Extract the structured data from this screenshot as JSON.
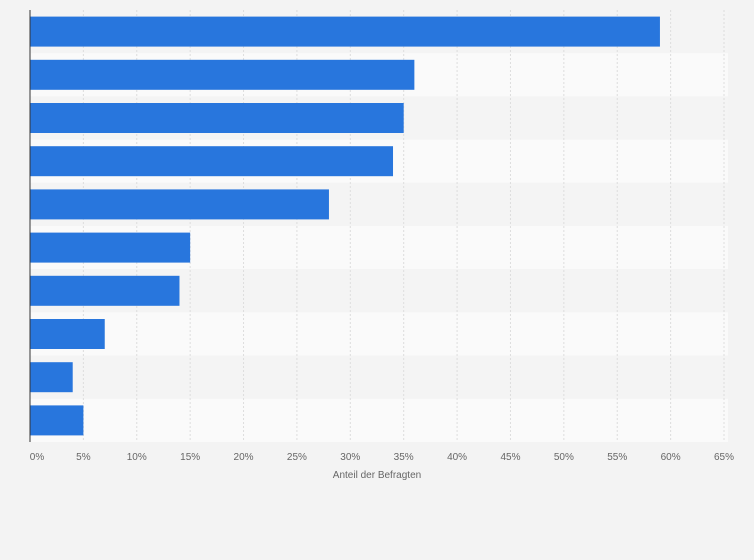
{
  "chart_data": {
    "type": "bar",
    "orientation": "horizontal",
    "categories": [
      "",
      "",
      "",
      "",
      "",
      "",
      "",
      "",
      "",
      ""
    ],
    "values": [
      59,
      36,
      35,
      34,
      28,
      15,
      14,
      7,
      4,
      5
    ],
    "xlabel": "Anteil der Befragten",
    "ylabel": "",
    "xlim": [
      0,
      65
    ],
    "ticks": [
      0,
      5,
      10,
      15,
      20,
      25,
      30,
      35,
      40,
      45,
      50,
      55,
      60,
      65
    ],
    "tick_labels": [
      "0%",
      "5%",
      "10%",
      "15%",
      "20%",
      "25%",
      "30%",
      "35%",
      "40%",
      "45%",
      "50%",
      "55%",
      "60%",
      "65%"
    ],
    "grid": true,
    "legend": "none"
  },
  "colors": {
    "bar": "#2876dd",
    "background": "#f3f3f3",
    "band_light": "#fafafa",
    "band_dark": "#f4f4f4",
    "grid": "#dddddd",
    "axis": "#333333"
  }
}
